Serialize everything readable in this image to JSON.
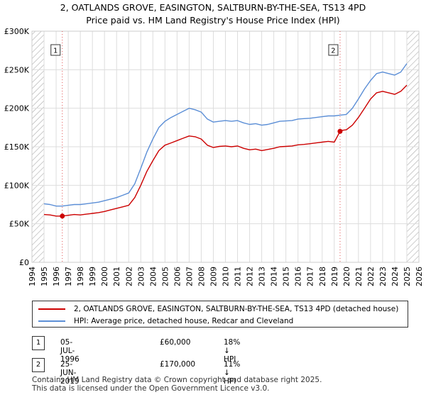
{
  "title_line1": "2, OATLANDS GROVE, EASINGTON, SALTBURN-BY-THE-SEA, TS13 4PD",
  "title_line2": "Price paid vs. HM Land Registry's House Price Index (HPI)",
  "colors": {
    "property": "#cc0000",
    "hpi": "#5b8ed6",
    "marker_line": "#e05050",
    "grid": "#dddddd",
    "hatch": "#999999"
  },
  "chart_data": {
    "type": "line",
    "title": "2, OATLANDS GROVE, EASINGTON, SALTBURN-BY-THE-SEA, TS13 4PD — Price paid vs. HM Land Registry's House Price Index (HPI)",
    "xlabel": "",
    "ylabel": "",
    "xlim": [
      1994,
      2026
    ],
    "ylim": [
      0,
      300000
    ],
    "y_ticks": [
      0,
      50000,
      100000,
      150000,
      200000,
      250000,
      300000
    ],
    "y_tick_labels": [
      "£0",
      "£50K",
      "£100K",
      "£150K",
      "£200K",
      "£250K",
      "£300K"
    ],
    "x_ticks": [
      1994,
      1995,
      1996,
      1997,
      1998,
      1999,
      2000,
      2001,
      2002,
      2003,
      2004,
      2005,
      2006,
      2007,
      2008,
      2009,
      2010,
      2011,
      2012,
      2013,
      2014,
      2015,
      2016,
      2017,
      2018,
      2019,
      2020,
      2021,
      2022,
      2023,
      2024,
      2025,
      2026
    ],
    "x_tick_labels": [
      "1994",
      "1995",
      "1996",
      "1997",
      "1998",
      "1999",
      "2000",
      "2001",
      "2002",
      "2003",
      "2004",
      "2005",
      "2006",
      "2007",
      "2008",
      "2009",
      "2010",
      "2011",
      "2012",
      "2013",
      "2014",
      "2015",
      "2016",
      "2017",
      "2018",
      "2019",
      "2020",
      "2021",
      "2022",
      "2023",
      "2024",
      "2025",
      "2026"
    ],
    "grid": true,
    "hatched_ranges": [
      [
        1994,
        1995
      ],
      [
        2025.0,
        2026
      ]
    ],
    "series": [
      {
        "name": "2, OATLANDS GROVE, EASINGTON, SALTBURN-BY-THE-SEA, TS13 4PD (detached house)",
        "color": "#cc0000",
        "x": [
          1995.0,
          1995.5,
          1996.0,
          1996.5,
          1997.0,
          1997.5,
          1998.0,
          1998.5,
          1999.0,
          1999.5,
          2000.0,
          2000.5,
          2001.0,
          2001.5,
          2002.0,
          2002.5,
          2003.0,
          2003.5,
          2004.0,
          2004.5,
          2005.0,
          2005.5,
          2006.0,
          2006.5,
          2007.0,
          2007.5,
          2008.0,
          2008.5,
          2009.0,
          2009.5,
          2010.0,
          2010.5,
          2011.0,
          2011.5,
          2012.0,
          2012.5,
          2013.0,
          2013.5,
          2014.0,
          2014.5,
          2015.0,
          2015.5,
          2016.0,
          2016.5,
          2017.0,
          2017.5,
          2018.0,
          2018.5,
          2019.0,
          2019.48,
          2019.5,
          2020.0,
          2020.5,
          2021.0,
          2021.5,
          2022.0,
          2022.5,
          2023.0,
          2023.5,
          2024.0,
          2024.5,
          2025.0
        ],
        "values": [
          62000,
          61500,
          60000,
          60000,
          61000,
          62000,
          61500,
          62500,
          63500,
          64500,
          66000,
          68000,
          70000,
          72000,
          74000,
          84000,
          100000,
          118000,
          132000,
          145000,
          152000,
          155000,
          158000,
          161000,
          164000,
          163000,
          160000,
          152000,
          149000,
          150500,
          151000,
          150000,
          151000,
          148000,
          146000,
          147000,
          145000,
          146500,
          148000,
          150000,
          150500,
          151000,
          152500,
          153000,
          154000,
          155000,
          156000,
          157000,
          156000,
          170000,
          171000,
          172000,
          178000,
          188000,
          200000,
          212000,
          220000,
          222000,
          220000,
          218000,
          222000,
          230000
        ]
      },
      {
        "name": "HPI: Average price, detached house, Redcar and Cleveland",
        "color": "#5b8ed6",
        "x": [
          1995.0,
          1995.5,
          1996.0,
          1996.5,
          1997.0,
          1997.5,
          1998.0,
          1998.5,
          1999.0,
          1999.5,
          2000.0,
          2000.5,
          2001.0,
          2001.5,
          2002.0,
          2002.5,
          2003.0,
          2003.5,
          2004.0,
          2004.5,
          2005.0,
          2005.5,
          2006.0,
          2006.5,
          2007.0,
          2007.5,
          2008.0,
          2008.5,
          2009.0,
          2009.5,
          2010.0,
          2010.5,
          2011.0,
          2011.5,
          2012.0,
          2012.5,
          2013.0,
          2013.5,
          2014.0,
          2014.5,
          2015.0,
          2015.5,
          2016.0,
          2016.5,
          2017.0,
          2017.5,
          2018.0,
          2018.5,
          2019.0,
          2019.5,
          2020.0,
          2020.5,
          2021.0,
          2021.5,
          2022.0,
          2022.5,
          2023.0,
          2023.5,
          2024.0,
          2024.5,
          2025.0
        ],
        "values": [
          76000,
          75000,
          73000,
          73000,
          74000,
          75000,
          75000,
          76000,
          77000,
          78000,
          80000,
          82000,
          84000,
          87000,
          90000,
          102000,
          122000,
          143000,
          160000,
          175000,
          183000,
          188000,
          192000,
          196000,
          200000,
          198000,
          195000,
          186000,
          182000,
          183000,
          184000,
          183000,
          184000,
          181000,
          179000,
          180000,
          178000,
          179000,
          181000,
          183000,
          183500,
          184000,
          186000,
          186500,
          187000,
          188000,
          189000,
          190000,
          190000,
          191000,
          192000,
          200000,
          212000,
          225000,
          236000,
          245000,
          247000,
          245000,
          243000,
          247000,
          258000
        ]
      }
    ],
    "sales": [
      {
        "label": "1",
        "x": 1996.51,
        "value": 60000
      },
      {
        "label": "2",
        "x": 2019.48,
        "value": 170000
      }
    ]
  },
  "legend": {
    "property": "2, OATLANDS GROVE, EASINGTON, SALTBURN-BY-THE-SEA, TS13 4PD (detached house)",
    "hpi": "HPI: Average price, detached house, Redcar and Cleveland"
  },
  "sales_table": [
    {
      "num": "1",
      "date": "05-JUL-1996",
      "price": "£60,000",
      "hpi_diff": "18% ↓ HPI"
    },
    {
      "num": "2",
      "date": "25-JUN-2019",
      "price": "£170,000",
      "hpi_diff": "11% ↓ HPI"
    }
  ],
  "footer_line1": "Contains HM Land Registry data © Crown copyright and database right 2025.",
  "footer_line2": "This data is licensed under the Open Government Licence v3.0."
}
